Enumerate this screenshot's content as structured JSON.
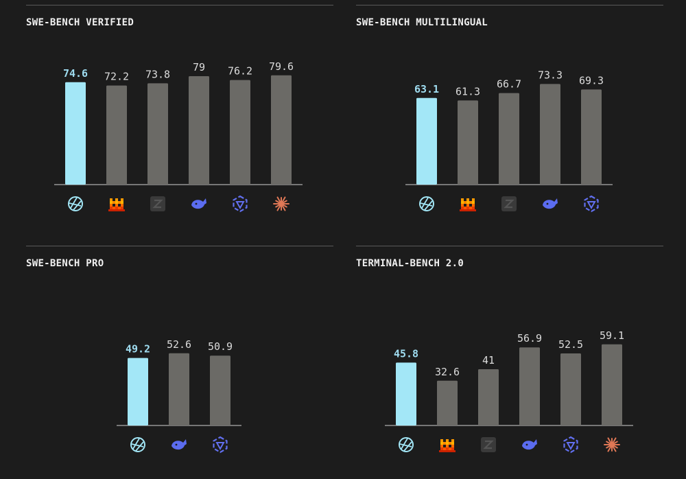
{
  "colors": {
    "background": "#1c1c1c",
    "highlight_bar": "#a3e7f7",
    "highlight_label": "#9fdcf0",
    "other_bar": "#6b6a66",
    "other_label": "#dcdcdc",
    "axis": "#777777"
  },
  "models": [
    {
      "icon": "circle-logo-icon",
      "color": "#a3e7f7"
    },
    {
      "icon": "pixel-castle-icon",
      "color": "#ff7a00"
    },
    {
      "icon": "z-square-icon",
      "color": "#3a3a3a"
    },
    {
      "icon": "whale-icon",
      "color": "#5b6cf0"
    },
    {
      "icon": "hexagon-star-icon",
      "color": "#6270f0"
    },
    {
      "icon": "starburst-icon",
      "color": "#e07856"
    }
  ],
  "chart_data": [
    {
      "type": "bar",
      "title": "SWE-BENCH VERIFIED",
      "models": [
        0,
        1,
        2,
        3,
        4,
        5
      ],
      "values": [
        74.6,
        72.2,
        73.8,
        79,
        76.2,
        79.6
      ],
      "labels": [
        "74.6",
        "72.2",
        "73.8",
        "79",
        "76.2",
        "79.6"
      ],
      "highlight_index": 0
    },
    {
      "type": "bar",
      "title": "SWE-BENCH MULTILINGUAL",
      "models": [
        0,
        1,
        2,
        3,
        4
      ],
      "values": [
        63.1,
        61.3,
        66.7,
        73.3,
        69.3
      ],
      "labels": [
        "63.1",
        "61.3",
        "66.7",
        "73.3",
        "69.3"
      ],
      "highlight_index": 0
    },
    {
      "type": "bar",
      "title": "SWE-BENCH PRO",
      "models": [
        0,
        3,
        4
      ],
      "values": [
        49.2,
        52.6,
        50.9
      ],
      "labels": [
        "49.2",
        "52.6",
        "50.9"
      ],
      "highlight_index": 0
    },
    {
      "type": "bar",
      "title": "TERMINAL-BENCH 2.0",
      "models": [
        0,
        1,
        2,
        3,
        4,
        5
      ],
      "values": [
        45.8,
        32.6,
        41,
        56.9,
        52.5,
        59.1
      ],
      "labels": [
        "45.8",
        "32.6",
        "41",
        "56.9",
        "52.5",
        "59.1"
      ],
      "highlight_index": 0
    }
  ]
}
